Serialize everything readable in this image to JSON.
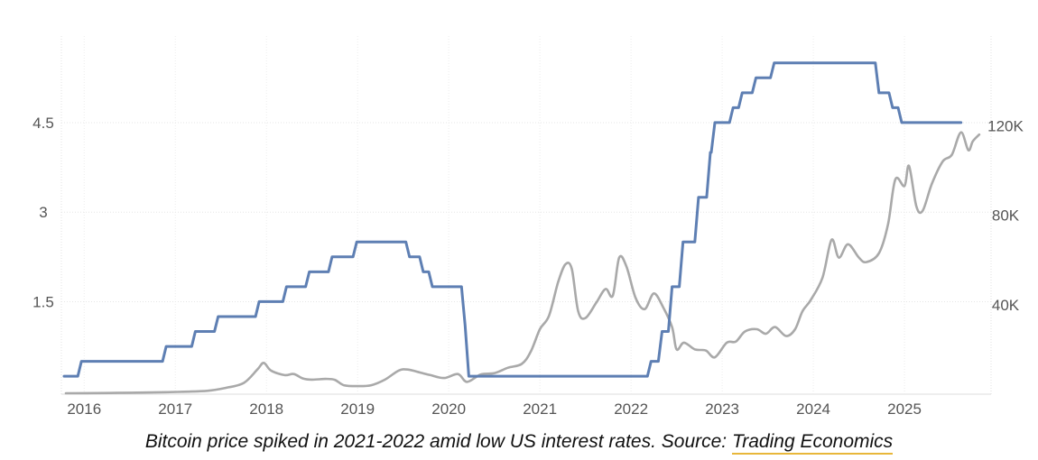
{
  "caption": {
    "text": "Bitcoin price spiked in 2021-2022 amid low US interest rates. Source: ",
    "link_text": "Trading Economics"
  },
  "chart_data": {
    "type": "line",
    "title": "",
    "xlabel": "",
    "ylabel": "",
    "grid": true,
    "legend": "none",
    "x_ticks": [
      "2016",
      "2017",
      "2018",
      "2019",
      "2020",
      "2021",
      "2022",
      "2023",
      "2024",
      "2025"
    ],
    "x_range": [
      2015.75,
      2025.95
    ],
    "y_left": {
      "ticks": [
        1.5,
        3,
        4.5
      ],
      "tick_labels": [
        "1.5",
        "3",
        "4.5"
      ],
      "range": [
        -0.05,
        5.95
      ]
    },
    "y_right": {
      "ticks": [
        40000,
        80000,
        120000
      ],
      "tick_labels": [
        "40K",
        "80K",
        "120K"
      ],
      "range": [
        0,
        160000
      ]
    },
    "series": [
      {
        "axis": "left",
        "color": "#5e7fb3",
        "step": true,
        "points": [
          [
            2015.78,
            0.25
          ],
          [
            2015.95,
            0.5
          ],
          [
            2016.88,
            0.75
          ],
          [
            2017.2,
            1.0
          ],
          [
            2017.45,
            1.25
          ],
          [
            2017.9,
            1.5
          ],
          [
            2018.2,
            1.75
          ],
          [
            2018.45,
            2.0
          ],
          [
            2018.7,
            2.25
          ],
          [
            2018.97,
            2.5
          ],
          [
            2019.55,
            2.25
          ],
          [
            2019.7,
            2.0
          ],
          [
            2019.8,
            1.75
          ],
          [
            2020.16,
            1.1
          ],
          [
            2020.2,
            0.25
          ],
          [
            2022.2,
            0.5
          ],
          [
            2022.32,
            1.0
          ],
          [
            2022.43,
            1.75
          ],
          [
            2022.55,
            2.5
          ],
          [
            2022.72,
            3.25
          ],
          [
            2022.85,
            4.0
          ],
          [
            2022.9,
            4.5
          ],
          [
            2023.1,
            4.75
          ],
          [
            2023.2,
            5.0
          ],
          [
            2023.35,
            5.25
          ],
          [
            2023.55,
            5.5
          ],
          [
            2024.7,
            5.0
          ],
          [
            2024.85,
            4.75
          ],
          [
            2024.95,
            4.5
          ],
          [
            2025.6,
            4.5
          ]
        ]
      },
      {
        "axis": "right",
        "color": "#a9a9a9",
        "step": false,
        "points": [
          [
            2015.8,
            400
          ],
          [
            2016.0,
            430
          ],
          [
            2016.5,
            650
          ],
          [
            2016.9,
            900
          ],
          [
            2017.1,
            1100
          ],
          [
            2017.35,
            1500
          ],
          [
            2017.55,
            2800
          ],
          [
            2017.75,
            5000
          ],
          [
            2017.9,
            11000
          ],
          [
            2017.97,
            14000
          ],
          [
            2018.05,
            10500
          ],
          [
            2018.2,
            8500
          ],
          [
            2018.3,
            9000
          ],
          [
            2018.4,
            7000
          ],
          [
            2018.5,
            6500
          ],
          [
            2018.65,
            6800
          ],
          [
            2018.75,
            6400
          ],
          [
            2018.85,
            4000
          ],
          [
            2019.0,
            3600
          ],
          [
            2019.15,
            4000
          ],
          [
            2019.3,
            6500
          ],
          [
            2019.45,
            10500
          ],
          [
            2019.55,
            11000
          ],
          [
            2019.7,
            9500
          ],
          [
            2019.8,
            8500
          ],
          [
            2019.95,
            7200
          ],
          [
            2020.1,
            9000
          ],
          [
            2020.2,
            5500
          ],
          [
            2020.35,
            8800
          ],
          [
            2020.5,
            9400
          ],
          [
            2020.65,
            11800
          ],
          [
            2020.8,
            13500
          ],
          [
            2020.9,
            19000
          ],
          [
            2021.0,
            29000
          ],
          [
            2021.1,
            35000
          ],
          [
            2021.2,
            50000
          ],
          [
            2021.28,
            58000
          ],
          [
            2021.35,
            56000
          ],
          [
            2021.42,
            37000
          ],
          [
            2021.5,
            34000
          ],
          [
            2021.62,
            41000
          ],
          [
            2021.72,
            47000
          ],
          [
            2021.8,
            44000
          ],
          [
            2021.87,
            61000
          ],
          [
            2021.95,
            57000
          ],
          [
            2022.05,
            43000
          ],
          [
            2022.15,
            38000
          ],
          [
            2022.25,
            45000
          ],
          [
            2022.35,
            39000
          ],
          [
            2022.45,
            30000
          ],
          [
            2022.5,
            20000
          ],
          [
            2022.58,
            23000
          ],
          [
            2022.7,
            20000
          ],
          [
            2022.82,
            19500
          ],
          [
            2022.92,
            16500
          ],
          [
            2023.05,
            23000
          ],
          [
            2023.15,
            23500
          ],
          [
            2023.25,
            28000
          ],
          [
            2023.38,
            29000
          ],
          [
            2023.48,
            27000
          ],
          [
            2023.58,
            30000
          ],
          [
            2023.7,
            26000
          ],
          [
            2023.8,
            29000
          ],
          [
            2023.88,
            37000
          ],
          [
            2023.97,
            42000
          ],
          [
            2024.1,
            52000
          ],
          [
            2024.2,
            69000
          ],
          [
            2024.28,
            61000
          ],
          [
            2024.38,
            67000
          ],
          [
            2024.5,
            61000
          ],
          [
            2024.58,
            59000
          ],
          [
            2024.72,
            63000
          ],
          [
            2024.82,
            76000
          ],
          [
            2024.9,
            96000
          ],
          [
            2025.0,
            93000
          ],
          [
            2025.05,
            102000
          ],
          [
            2025.13,
            84000
          ],
          [
            2025.2,
            82000
          ],
          [
            2025.3,
            94000
          ],
          [
            2025.42,
            104000
          ],
          [
            2025.52,
            107000
          ],
          [
            2025.62,
            117000
          ],
          [
            2025.7,
            109000
          ],
          [
            2025.75,
            113000
          ],
          [
            2025.82,
            116000
          ]
        ]
      }
    ]
  }
}
